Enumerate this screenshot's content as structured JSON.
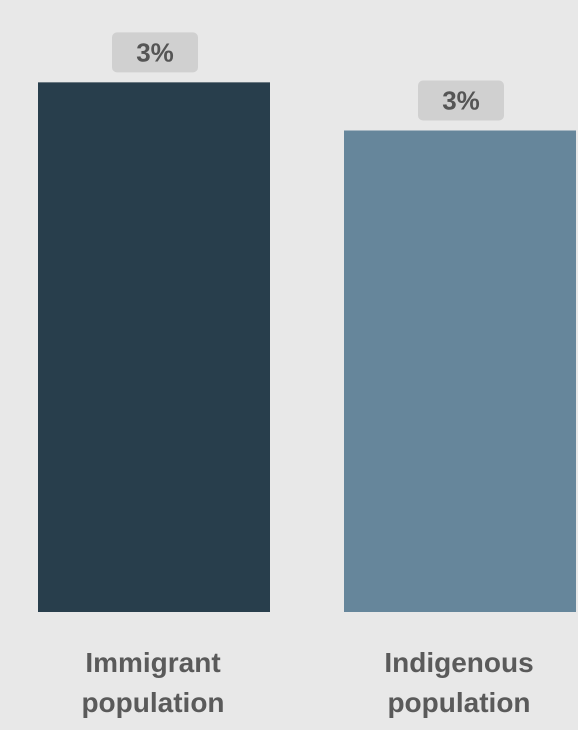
{
  "chart_data": {
    "type": "bar",
    "categories": [
      "Immigrant population",
      "Indigenous population"
    ],
    "category_lines": [
      [
        "Immigrant",
        "population"
      ],
      [
        "Indigenous",
        "population"
      ]
    ],
    "values": [
      3.3,
      3.0
    ],
    "data_labels": [
      "3%",
      "3%"
    ],
    "colors": [
      "#283e4c",
      "#66869b"
    ],
    "title": "",
    "xlabel": "",
    "ylabel": "",
    "grid": false,
    "legend": "none"
  }
}
